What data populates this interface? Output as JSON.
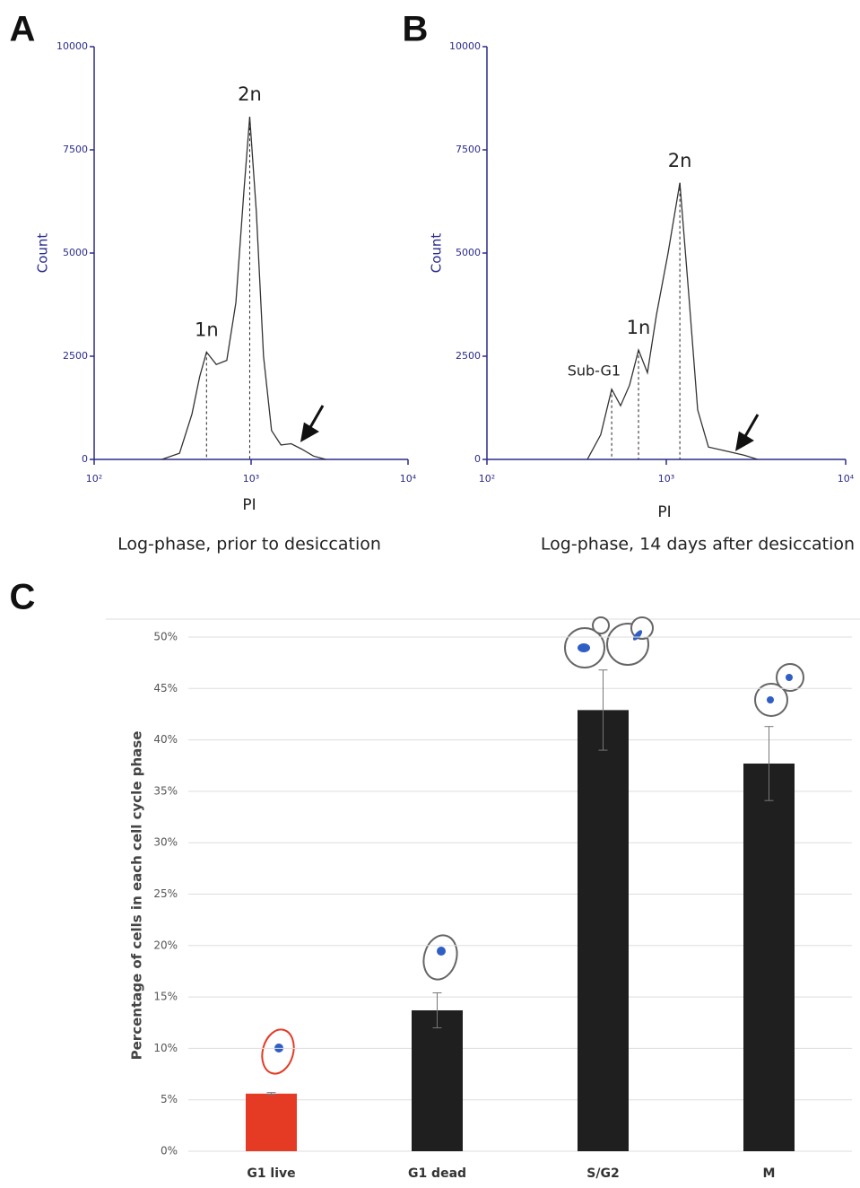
{
  "chart_data": [
    {
      "type": "line",
      "panel": "A",
      "caption": "Log-phase, prior to desiccation",
      "ylabel": "Count",
      "xlabel": "PI",
      "xlog": true,
      "xlim": [
        100,
        10000
      ],
      "xticks": [
        {
          "value": 100,
          "label": "10²"
        },
        {
          "value": 1000,
          "label": "10³"
        },
        {
          "value": 10000,
          "label": "10⁴"
        }
      ],
      "ylim": [
        0,
        10000
      ],
      "yticks": [
        0,
        2500,
        5000,
        7500,
        10000
      ],
      "color": "#333333",
      "x": [
        270,
        350,
        420,
        470,
        520,
        600,
        700,
        800,
        900,
        980,
        1080,
        1200,
        1350,
        1550,
        1800,
        2100,
        2500,
        3000
      ],
      "values": [
        0,
        150,
        1100,
        2000,
        2600,
        2300,
        2400,
        3800,
        6500,
        8300,
        6000,
        2500,
        700,
        350,
        380,
        250,
        80,
        0
      ],
      "annotations": [
        {
          "text": "1n",
          "x": 520,
          "y": 2600
        },
        {
          "text": "2n",
          "x": 980,
          "y": 8300
        }
      ]
    },
    {
      "type": "line",
      "panel": "B",
      "caption": "Log-phase, 14 days after desiccation",
      "ylabel": "Count",
      "xlabel": "PI",
      "xlog": true,
      "xlim": [
        100,
        10000
      ],
      "xticks": [
        {
          "value": 100,
          "label": "10²"
        },
        {
          "value": 1000,
          "label": "10³"
        },
        {
          "value": 10000,
          "label": "10⁴"
        }
      ],
      "ylim": [
        0,
        10000
      ],
      "yticks": [
        0,
        2500,
        5000,
        7500,
        10000
      ],
      "color": "#333333",
      "x": [
        363,
        431,
        496,
        556,
        624,
        700,
        785,
        881,
        1023,
        1190,
        1334,
        1496,
        1718,
        2163,
        2723,
        3236
      ],
      "values": [
        0,
        600,
        1700,
        1300,
        1800,
        2650,
        2100,
        3500,
        5000,
        6700,
        4000,
        1200,
        300,
        200,
        100,
        0
      ],
      "annotations": [
        {
          "text": "Sub-G1",
          "x": 496,
          "y": 1700
        },
        {
          "text": "1n",
          "x": 700,
          "y": 2650
        },
        {
          "text": "2n",
          "x": 1190,
          "y": 6700
        }
      ]
    },
    {
      "type": "bar",
      "panel": "C",
      "ylabel": "Percentage of cells in each cell cycle phase",
      "categories": [
        "G1 live",
        "G1 dead",
        "S/G2",
        "M"
      ],
      "values": [
        5.6,
        13.7,
        42.9,
        37.7
      ],
      "errors": [
        0.1,
        1.7,
        3.9,
        3.6
      ],
      "colors": [
        "#e53a24",
        "#1f1f1f",
        "#1f1f1f",
        "#1f1f1f"
      ],
      "grid": true,
      "ylim": [
        0,
        50
      ],
      "yticks": [
        {
          "value": 0,
          "label": "0%"
        },
        {
          "value": 5,
          "label": "5%"
        },
        {
          "value": 10,
          "label": "10%"
        },
        {
          "value": 15,
          "label": "15%"
        },
        {
          "value": 20,
          "label": "20%"
        },
        {
          "value": 25,
          "label": "25%"
        },
        {
          "value": 30,
          "label": "30%"
        },
        {
          "value": 35,
          "label": "35%"
        },
        {
          "value": 40,
          "label": "40%"
        },
        {
          "value": 45,
          "label": "45%"
        },
        {
          "value": 50,
          "label": "50%"
        }
      ]
    }
  ]
}
